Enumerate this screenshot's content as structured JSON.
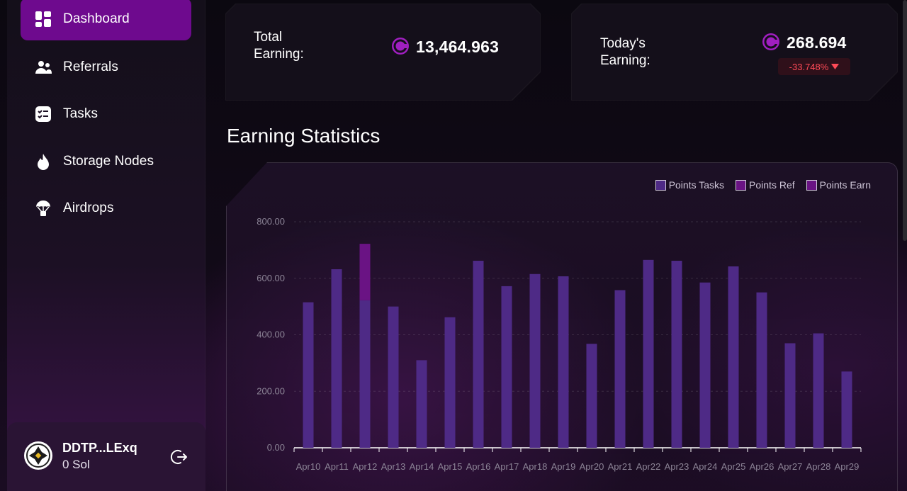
{
  "sidebar": {
    "items": [
      {
        "label": "Dashboard",
        "icon": "dashboard-grid-icon",
        "active": true
      },
      {
        "label": "Referrals",
        "icon": "referrals-users-icon",
        "active": false
      },
      {
        "label": "Tasks",
        "icon": "tasks-checklist-icon",
        "active": false
      },
      {
        "label": "Storage Nodes",
        "icon": "storage-drop-icon",
        "active": false
      },
      {
        "label": "Airdrops",
        "icon": "airdrop-parachute-icon",
        "active": false
      }
    ],
    "user": {
      "name": "DDTP...LExq",
      "balance": "0 Sol"
    }
  },
  "stats": {
    "total": {
      "label": "Total Earning:",
      "value": "13,464.963"
    },
    "today": {
      "label": "Today's Earning:",
      "value": "268.694",
      "change": "-33.748%"
    }
  },
  "section_title": "Earning Statistics",
  "colors": {
    "accent": "#6e0a8e",
    "tasks": "#4e2a86",
    "ref": "#6a1384",
    "earn": "#6a1384",
    "negative": "#ff4a57"
  },
  "chart_data": {
    "type": "bar",
    "stacked": true,
    "categories": [
      "Apr10",
      "Apr11",
      "Apr12",
      "Apr13",
      "Apr14",
      "Apr15",
      "Apr16",
      "Apr17",
      "Apr18",
      "Apr19",
      "Apr20",
      "Apr21",
      "Apr22",
      "Apr23",
      "Apr24",
      "Apr25",
      "Apr26",
      "Apr27",
      "Apr28",
      "Apr29"
    ],
    "series": [
      {
        "name": "Points Tasks",
        "values": [
          515,
          632,
          522,
          500,
          310,
          462,
          662,
          572,
          615,
          607,
          368,
          558,
          665,
          662,
          585,
          642,
          550,
          370,
          405,
          270
        ]
      },
      {
        "name": "Points Ref",
        "values": [
          0,
          0,
          200,
          0,
          0,
          0,
          0,
          0,
          0,
          0,
          0,
          0,
          0,
          0,
          0,
          0,
          0,
          0,
          0,
          0
        ]
      },
      {
        "name": "Points Earn",
        "values": [
          0,
          0,
          0,
          0,
          0,
          0,
          0,
          0,
          0,
          0,
          0,
          0,
          0,
          0,
          0,
          0,
          0,
          0,
          0,
          0
        ]
      }
    ],
    "y_ticks": [
      "0.00",
      "200.00",
      "400.00",
      "600.00",
      "800.00"
    ],
    "ylim": [
      0,
      800
    ],
    "grid": true,
    "legend": "top-right"
  }
}
